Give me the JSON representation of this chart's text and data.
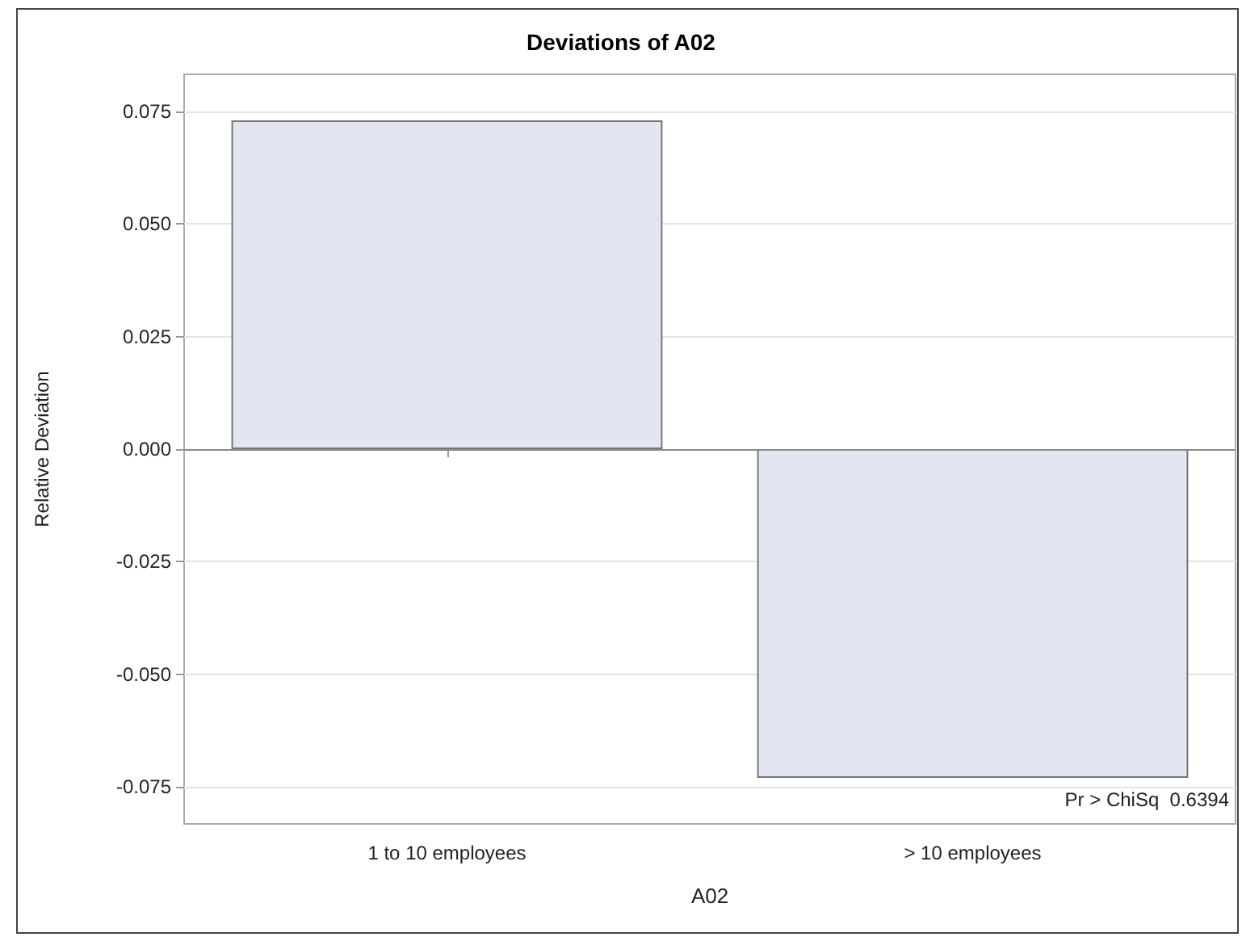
{
  "chart_data": {
    "type": "bar",
    "title": "Deviations of A02",
    "xlabel": "A02",
    "ylabel": "Relative Deviation",
    "categories": [
      "1 to 10 employees",
      "> 10 employees"
    ],
    "values": [
      0.073,
      -0.073
    ],
    "color": "#e1e6f0",
    "ylim": [
      -0.0832,
      0.0832
    ],
    "yticks": [
      -0.075,
      {
        "value": -0.05,
        "label": "-0.050"
      },
      -0.025,
      {
        "value": 0,
        "label": "0.000"
      },
      0.025,
      {
        "value": 0.05,
        "label": "0.050"
      },
      0.075
    ],
    "grid": "y",
    "ref_lines": [
      {
        "axis": "y",
        "value": 0,
        "label": null,
        "color": "#888888"
      }
    ],
    "annotations": [
      "Pr > ChiSq  0.6394"
    ]
  }
}
